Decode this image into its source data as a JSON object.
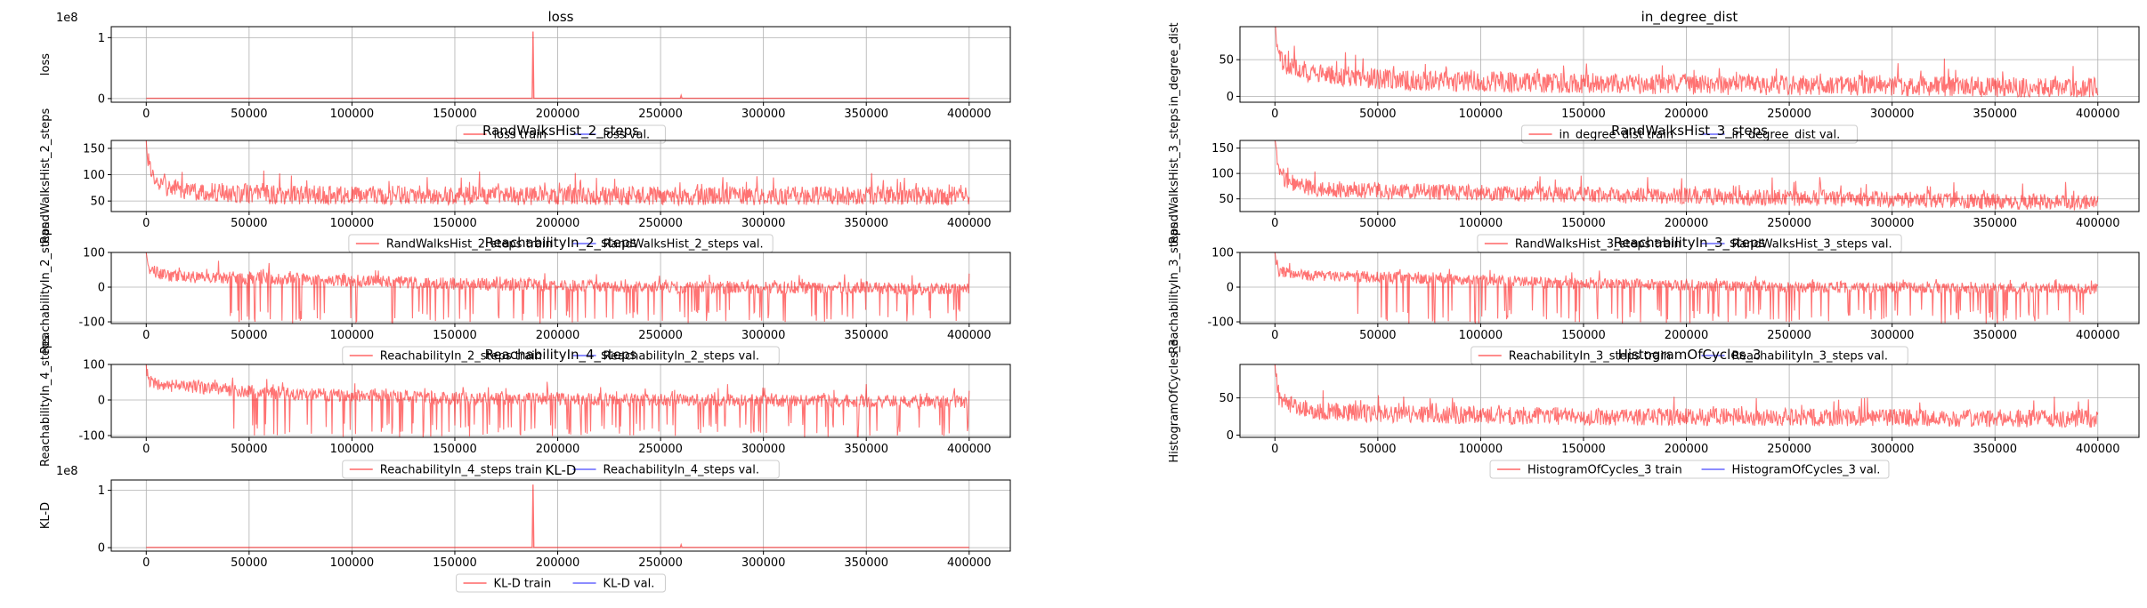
{
  "colors": {
    "train": "#ff0000",
    "val": "#0000ff",
    "grid": "#b0b0b0",
    "axis": "#000000"
  },
  "chart_data": [
    {
      "type": "line",
      "title": "loss",
      "ylabel": "loss",
      "offset_label": "1e8",
      "xlim": [
        -17000,
        420000
      ],
      "ylim": [
        -0.06,
        1.18
      ],
      "xticks": [
        0,
        50000,
        100000,
        150000,
        200000,
        250000,
        300000,
        350000,
        400000
      ],
      "yticks": [
        0,
        1
      ],
      "grid": true,
      "legend_position": "bottom-center",
      "series": [
        {
          "name": "loss train",
          "color": "#ff0000",
          "base": 0.0,
          "noise": 0.0,
          "spikes": [
            [
              188000,
              1.1
            ],
            [
              260000,
              0.05
            ]
          ],
          "x": [
            0,
            400000
          ],
          "y": [
            0.01,
            0.0
          ]
        },
        {
          "name": "loss val.",
          "color": "#0000ff"
        }
      ]
    },
    {
      "type": "line",
      "title": "in_degree_dist",
      "ylabel": "in_degree_dist",
      "offset_label": "",
      "xlim": [
        -17000,
        420000
      ],
      "ylim": [
        -8,
        95
      ],
      "xticks": [
        0,
        50000,
        100000,
        150000,
        200000,
        250000,
        300000,
        350000,
        400000
      ],
      "yticks": [
        0,
        50
      ],
      "grid": true,
      "legend_position": "bottom-center",
      "series": [
        {
          "name": "in_degree_dist train",
          "color": "#ff0000",
          "x": [
            0,
            2000,
            8000,
            20000,
            60000,
            150000,
            250000,
            400000
          ],
          "y": [
            95,
            50,
            40,
            30,
            22,
            18,
            15,
            12
          ],
          "noise": 14,
          "dips": 0
        },
        {
          "name": "in_degree_dist val.",
          "color": "#0000ff"
        }
      ]
    },
    {
      "type": "line",
      "title": "RandWalksHist_2_steps",
      "ylabel": "RandWalksHist_2_steps",
      "offset_label": "",
      "xlim": [
        -17000,
        420000
      ],
      "ylim": [
        30,
        165
      ],
      "xticks": [
        0,
        50000,
        100000,
        150000,
        200000,
        250000,
        300000,
        350000,
        400000
      ],
      "yticks": [
        50,
        100,
        150
      ],
      "grid": true,
      "legend_position": "bottom-center",
      "series": [
        {
          "name": "RandWalksHist_2_steps train",
          "color": "#ff0000",
          "x": [
            0,
            2000,
            8000,
            20000,
            60000,
            150000,
            250000,
            400000
          ],
          "y": [
            160,
            100,
            80,
            68,
            62,
            60,
            60,
            60
          ],
          "noise": 18,
          "dips": 0
        },
        {
          "name": "RandWalksHist_2_steps val.",
          "color": "#0000ff"
        }
      ]
    },
    {
      "type": "line",
      "title": "RandWalksHist_3_steps",
      "ylabel": "RandWalksHist_3_steps",
      "offset_label": "",
      "xlim": [
        -17000,
        420000
      ],
      "ylim": [
        25,
        165
      ],
      "xticks": [
        0,
        50000,
        100000,
        150000,
        200000,
        250000,
        300000,
        350000,
        400000
      ],
      "yticks": [
        50,
        100,
        150
      ],
      "grid": true,
      "legend_position": "bottom-center",
      "series": [
        {
          "name": "RandWalksHist_3_steps train",
          "color": "#ff0000",
          "x": [
            0,
            2000,
            8000,
            20000,
            60000,
            150000,
            250000,
            400000
          ],
          "y": [
            160,
            100,
            80,
            70,
            65,
            58,
            52,
            42
          ],
          "noise": 16,
          "dips": 0
        },
        {
          "name": "RandWalksHist_3_steps val.",
          "color": "#0000ff"
        }
      ]
    },
    {
      "type": "line",
      "title": "ReachabilityIn_2_steps",
      "ylabel": "ReachabilityIn_2_steps",
      "offset_label": "",
      "xlim": [
        -17000,
        420000
      ],
      "ylim": [
        -105,
        100
      ],
      "xticks": [
        0,
        50000,
        100000,
        150000,
        200000,
        250000,
        300000,
        350000,
        400000
      ],
      "yticks": [
        -100,
        0,
        100
      ],
      "grid": true,
      "legend_position": "bottom-center",
      "series": [
        {
          "name": "ReachabilityIn_2_steps train",
          "color": "#ff0000",
          "x": [
            0,
            2000,
            8000,
            20000,
            60000,
            150000,
            250000,
            400000
          ],
          "y": [
            90,
            50,
            35,
            30,
            25,
            10,
            0,
            -5
          ],
          "noise": 18,
          "dips": 1
        },
        {
          "name": "ReachabilityIn_2_steps val.",
          "color": "#0000ff"
        }
      ]
    },
    {
      "type": "line",
      "title": "ReachabilityIn_3_steps",
      "ylabel": "ReachabilityIn_3_steps",
      "offset_label": "",
      "xlim": [
        -17000,
        420000
      ],
      "ylim": [
        -105,
        100
      ],
      "xticks": [
        0,
        50000,
        100000,
        150000,
        200000,
        250000,
        300000,
        350000,
        400000
      ],
      "yticks": [
        -100,
        0,
        100
      ],
      "grid": true,
      "legend_position": "bottom-center",
      "series": [
        {
          "name": "ReachabilityIn_3_steps train",
          "color": "#ff0000",
          "x": [
            0,
            2000,
            8000,
            20000,
            60000,
            150000,
            250000,
            400000
          ],
          "y": [
            90,
            45,
            38,
            32,
            28,
            10,
            0,
            -5
          ],
          "noise": 16,
          "dips": 1
        },
        {
          "name": "ReachabilityIn_3_steps val.",
          "color": "#0000ff"
        }
      ]
    },
    {
      "type": "line",
      "title": "ReachabilityIn_4_steps",
      "ylabel": "ReachabilityIn_4_steps",
      "offset_label": "",
      "xlim": [
        -17000,
        420000
      ],
      "ylim": [
        -105,
        100
      ],
      "xticks": [
        0,
        50000,
        100000,
        150000,
        200000,
        250000,
        300000,
        350000,
        400000
      ],
      "yticks": [
        -100,
        0,
        100
      ],
      "grid": true,
      "legend_position": "bottom-center",
      "series": [
        {
          "name": "ReachabilityIn_4_steps train",
          "color": "#ff0000",
          "x": [
            0,
            2000,
            8000,
            20000,
            60000,
            150000,
            250000,
            400000
          ],
          "y": [
            90,
            50,
            42,
            38,
            20,
            5,
            0,
            -5
          ],
          "noise": 18,
          "dips": 1
        },
        {
          "name": "ReachabilityIn_4_steps val.",
          "color": "#0000ff"
        }
      ]
    },
    {
      "type": "line",
      "title": "HistogramOfCycles_3",
      "ylabel": "HistogramOfCycles_3",
      "offset_label": "",
      "xlim": [
        -17000,
        420000
      ],
      "ylim": [
        -3,
        95
      ],
      "xticks": [
        0,
        50000,
        100000,
        150000,
        200000,
        250000,
        300000,
        350000,
        400000
      ],
      "yticks": [
        0,
        50
      ],
      "grid": true,
      "legend_position": "bottom-center",
      "series": [
        {
          "name": "HistogramOfCycles_3 train",
          "color": "#ff0000",
          "x": [
            0,
            2000,
            8000,
            20000,
            60000,
            150000,
            250000,
            400000
          ],
          "y": [
            92,
            50,
            40,
            32,
            28,
            25,
            24,
            22
          ],
          "noise": 12,
          "dips": 0
        },
        {
          "name": "HistogramOfCycles_3 val.",
          "color": "#0000ff"
        }
      ]
    },
    {
      "type": "line",
      "title": "KL-D",
      "ylabel": "KL-D",
      "offset_label": "1e8",
      "xlim": [
        -17000,
        420000
      ],
      "ylim": [
        -0.06,
        1.18
      ],
      "xticks": [
        0,
        50000,
        100000,
        150000,
        200000,
        250000,
        300000,
        350000,
        400000
      ],
      "yticks": [
        0,
        1
      ],
      "grid": true,
      "legend_position": "bottom-center",
      "series": [
        {
          "name": "KL-D train",
          "color": "#ff0000",
          "base": 0.0,
          "noise": 0.0,
          "spikes": [
            [
              188000,
              1.1
            ],
            [
              260000,
              0.05
            ]
          ],
          "x": [
            0,
            400000
          ],
          "y": [
            0.01,
            0.0
          ]
        },
        {
          "name": "KL-D val.",
          "color": "#0000ff"
        }
      ]
    }
  ]
}
